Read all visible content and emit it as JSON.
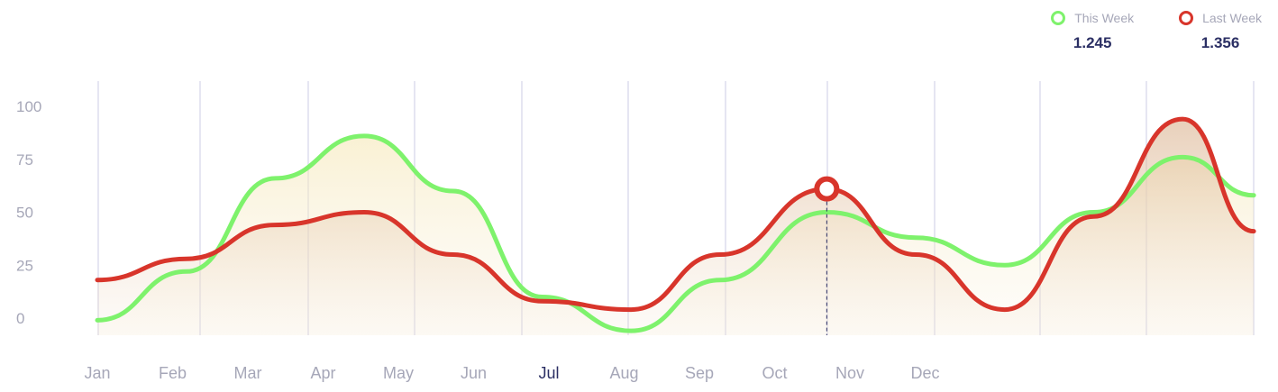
{
  "legend": {
    "this_week": {
      "label": "This Week",
      "value": "1.245",
      "color": "#7ef26c"
    },
    "last_week": {
      "label": "Last Week",
      "value": "1.356",
      "color": "#d8352b"
    }
  },
  "active_month": "Jul",
  "highlight": {
    "series": "Last Week",
    "x_index": 8.2
  },
  "chart_data": {
    "type": "area",
    "categories": [
      "Jan",
      "Feb",
      "Mar",
      "Apr",
      "May",
      "Jun",
      "Jul",
      "Aug",
      "Sep",
      "Oct",
      "Nov",
      "Dec"
    ],
    "yticks": [
      0,
      25,
      50,
      75,
      100
    ],
    "ylim": [
      0,
      100
    ],
    "grid": "vertical",
    "legend_position": "top-right",
    "series": [
      {
        "name": "This Week",
        "color": "#7ef26c",
        "points": [
          [
            0,
            -1
          ],
          [
            1,
            22
          ],
          [
            2,
            66
          ],
          [
            3,
            86
          ],
          [
            4,
            60
          ],
          [
            5,
            10
          ],
          [
            6,
            -6
          ],
          [
            7,
            18
          ],
          [
            8.2,
            50
          ],
          [
            9.2,
            38
          ],
          [
            10.2,
            25
          ],
          [
            11.2,
            50
          ],
          [
            12.2,
            76
          ],
          [
            13,
            58
          ]
        ]
      },
      {
        "name": "Last Week",
        "color": "#d8352b",
        "points": [
          [
            0,
            18
          ],
          [
            1,
            28
          ],
          [
            2,
            44
          ],
          [
            3,
            50
          ],
          [
            4,
            30
          ],
          [
            5,
            8
          ],
          [
            6,
            4
          ],
          [
            7,
            30
          ],
          [
            8.2,
            61
          ],
          [
            9.2,
            30
          ],
          [
            10.2,
            4
          ],
          [
            11.2,
            48
          ],
          [
            12.2,
            94
          ],
          [
            13,
            41
          ]
        ]
      }
    ]
  }
}
